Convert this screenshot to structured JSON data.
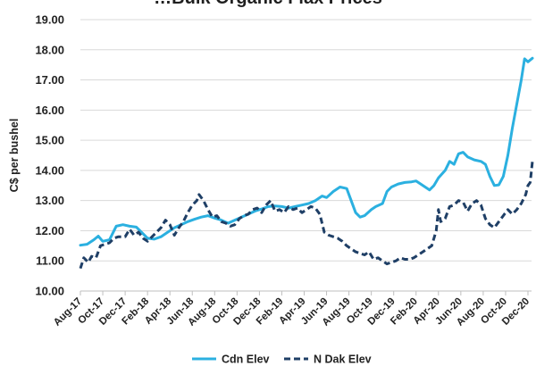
{
  "chart_data": {
    "type": "line",
    "title": "…Bulk Organic Flax Prices",
    "xlabel": "",
    "ylabel": "C$ per bushel",
    "ylim": [
      10.0,
      19.0
    ],
    "yticks": [
      "10.00",
      "11.00",
      "12.00",
      "13.00",
      "14.00",
      "15.00",
      "16.00",
      "17.00",
      "18.00",
      "19.00"
    ],
    "x_tick_labels": [
      "Aug-17",
      "Oct-17",
      "Dec-17",
      "Feb-18",
      "Apr-18",
      "Jun-18",
      "Aug-18",
      "Oct-18",
      "Dec-18",
      "Feb-19",
      "Apr-19",
      "Jun-19",
      "Aug-19",
      "Oct-19",
      "Dec-19",
      "Feb-20",
      "Apr-20",
      "Jun-20",
      "Aug-20",
      "Oct-20",
      "Dec-20"
    ],
    "grid": "horizontal",
    "legend_position": "bottom",
    "series_colors": {
      "Cdn Elev": "#2bb0e0",
      "N Dak Elev": "#1f3f66"
    },
    "series": [
      {
        "name": "Cdn Elev",
        "style": "solid",
        "points": [
          [
            0,
            11.52
          ],
          [
            0.3,
            11.55
          ],
          [
            0.6,
            11.7
          ],
          [
            0.8,
            11.82
          ],
          [
            1.0,
            11.65
          ],
          [
            1.3,
            11.7
          ],
          [
            1.6,
            12.15
          ],
          [
            1.9,
            12.2
          ],
          [
            2.2,
            12.15
          ],
          [
            2.5,
            12.12
          ],
          [
            2.8,
            11.9
          ],
          [
            3.0,
            11.75
          ],
          [
            3.3,
            11.72
          ],
          [
            3.6,
            11.8
          ],
          [
            3.9,
            11.95
          ],
          [
            4.2,
            12.1
          ],
          [
            4.5,
            12.2
          ],
          [
            4.8,
            12.3
          ],
          [
            5.1,
            12.38
          ],
          [
            5.4,
            12.45
          ],
          [
            5.7,
            12.5
          ],
          [
            6.0,
            12.42
          ],
          [
            6.3,
            12.35
          ],
          [
            6.6,
            12.25
          ],
          [
            6.9,
            12.35
          ],
          [
            7.2,
            12.45
          ],
          [
            7.5,
            12.55
          ],
          [
            7.8,
            12.65
          ],
          [
            8.1,
            12.72
          ],
          [
            8.4,
            12.8
          ],
          [
            8.7,
            12.82
          ],
          [
            9.0,
            12.8
          ],
          [
            9.3,
            12.75
          ],
          [
            9.6,
            12.8
          ],
          [
            9.9,
            12.85
          ],
          [
            10.2,
            12.9
          ],
          [
            10.5,
            13.0
          ],
          [
            10.8,
            13.15
          ],
          [
            11.0,
            13.1
          ],
          [
            11.3,
            13.3
          ],
          [
            11.6,
            13.45
          ],
          [
            11.9,
            13.4
          ],
          [
            12.1,
            13.0
          ],
          [
            12.3,
            12.6
          ],
          [
            12.5,
            12.45
          ],
          [
            12.7,
            12.5
          ],
          [
            13.0,
            12.7
          ],
          [
            13.2,
            12.8
          ],
          [
            13.5,
            12.9
          ],
          [
            13.7,
            13.3
          ],
          [
            13.9,
            13.45
          ],
          [
            14.2,
            13.55
          ],
          [
            14.5,
            13.6
          ],
          [
            14.8,
            13.62
          ],
          [
            15.0,
            13.65
          ],
          [
            15.3,
            13.5
          ],
          [
            15.6,
            13.35
          ],
          [
            15.8,
            13.5
          ],
          [
            16.0,
            13.75
          ],
          [
            16.3,
            14.0
          ],
          [
            16.5,
            14.3
          ],
          [
            16.7,
            14.2
          ],
          [
            16.9,
            14.55
          ],
          [
            17.1,
            14.6
          ],
          [
            17.3,
            14.45
          ],
          [
            17.6,
            14.35
          ],
          [
            17.9,
            14.3
          ],
          [
            18.1,
            14.2
          ],
          [
            18.3,
            13.8
          ],
          [
            18.5,
            13.5
          ],
          [
            18.7,
            13.52
          ],
          [
            18.9,
            13.8
          ],
          [
            19.1,
            14.5
          ],
          [
            19.3,
            15.4
          ],
          [
            19.5,
            16.2
          ],
          [
            19.7,
            17.0
          ],
          [
            19.85,
            17.7
          ],
          [
            20.0,
            17.6
          ],
          [
            20.2,
            17.72
          ]
        ]
      },
      {
        "name": "N Dak Elev",
        "style": "dashed",
        "points": [
          [
            0,
            10.75
          ],
          [
            0.15,
            11.1
          ],
          [
            0.35,
            10.95
          ],
          [
            0.5,
            11.15
          ],
          [
            0.7,
            11.1
          ],
          [
            0.9,
            11.5
          ],
          [
            1.1,
            11.55
          ],
          [
            1.3,
            11.6
          ],
          [
            1.5,
            11.75
          ],
          [
            1.7,
            11.8
          ],
          [
            2.0,
            11.8
          ],
          [
            2.2,
            12.05
          ],
          [
            2.4,
            11.85
          ],
          [
            2.6,
            11.95
          ],
          [
            2.8,
            11.75
          ],
          [
            3.0,
            11.65
          ],
          [
            3.2,
            11.8
          ],
          [
            3.4,
            11.95
          ],
          [
            3.6,
            12.1
          ],
          [
            3.8,
            12.35
          ],
          [
            4.0,
            12.2
          ],
          [
            4.2,
            11.85
          ],
          [
            4.4,
            12.1
          ],
          [
            4.6,
            12.3
          ],
          [
            4.8,
            12.6
          ],
          [
            5.0,
            12.85
          ],
          [
            5.2,
            13.0
          ],
          [
            5.3,
            13.2
          ],
          [
            5.5,
            13.0
          ],
          [
            5.7,
            12.7
          ],
          [
            5.9,
            12.45
          ],
          [
            6.1,
            12.5
          ],
          [
            6.3,
            12.3
          ],
          [
            6.5,
            12.25
          ],
          [
            6.7,
            12.15
          ],
          [
            6.9,
            12.2
          ],
          [
            7.1,
            12.4
          ],
          [
            7.3,
            12.5
          ],
          [
            7.5,
            12.55
          ],
          [
            7.7,
            12.7
          ],
          [
            7.9,
            12.75
          ],
          [
            8.1,
            12.6
          ],
          [
            8.3,
            12.85
          ],
          [
            8.5,
            13.0
          ],
          [
            8.7,
            12.65
          ],
          [
            8.9,
            12.7
          ],
          [
            9.1,
            12.6
          ],
          [
            9.3,
            12.8
          ],
          [
            9.5,
            12.7
          ],
          [
            9.7,
            12.75
          ],
          [
            9.9,
            12.6
          ],
          [
            10.1,
            12.7
          ],
          [
            10.3,
            12.8
          ],
          [
            10.5,
            12.75
          ],
          [
            10.7,
            12.55
          ],
          [
            10.9,
            11.95
          ],
          [
            11.1,
            11.85
          ],
          [
            11.3,
            11.8
          ],
          [
            11.5,
            11.75
          ],
          [
            11.7,
            11.65
          ],
          [
            11.9,
            11.5
          ],
          [
            12.1,
            11.4
          ],
          [
            12.3,
            11.3
          ],
          [
            12.5,
            11.25
          ],
          [
            12.7,
            11.2
          ],
          [
            12.9,
            11.3
          ],
          [
            13.1,
            11.05
          ],
          [
            13.3,
            11.1
          ],
          [
            13.5,
            11.0
          ],
          [
            13.7,
            10.9
          ],
          [
            13.9,
            10.95
          ],
          [
            14.1,
            11.0
          ],
          [
            14.3,
            11.1
          ],
          [
            14.5,
            11.05
          ],
          [
            14.7,
            11.05
          ],
          [
            14.9,
            11.1
          ],
          [
            15.1,
            11.2
          ],
          [
            15.3,
            11.3
          ],
          [
            15.5,
            11.4
          ],
          [
            15.7,
            11.5
          ],
          [
            15.9,
            12.0
          ],
          [
            16.0,
            12.7
          ],
          [
            16.1,
            12.3
          ],
          [
            16.3,
            12.4
          ],
          [
            16.5,
            12.8
          ],
          [
            16.7,
            12.85
          ],
          [
            16.9,
            13.0
          ],
          [
            17.1,
            12.95
          ],
          [
            17.3,
            12.65
          ],
          [
            17.5,
            12.9
          ],
          [
            17.7,
            13.0
          ],
          [
            17.9,
            12.85
          ],
          [
            18.1,
            12.4
          ],
          [
            18.3,
            12.2
          ],
          [
            18.5,
            12.1
          ],
          [
            18.7,
            12.3
          ],
          [
            18.9,
            12.5
          ],
          [
            19.1,
            12.7
          ],
          [
            19.3,
            12.55
          ],
          [
            19.5,
            12.7
          ],
          [
            19.7,
            12.9
          ],
          [
            19.9,
            13.2
          ],
          [
            20.0,
            13.5
          ],
          [
            20.1,
            13.6
          ],
          [
            20.2,
            14.3
          ]
        ]
      }
    ]
  }
}
